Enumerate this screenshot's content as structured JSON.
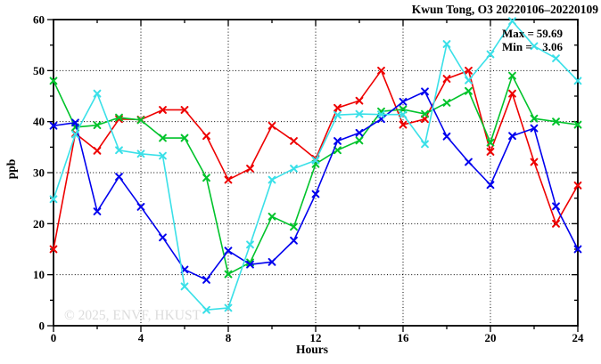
{
  "title": "Kwun Tong, O3 20220106–20220109",
  "annotation": {
    "max_label": "Max =",
    "max_value": "59.69",
    "min_label": "Min =",
    "min_value": "3.06"
  },
  "watermark": "© 2025, ENVF, HKUST",
  "chart_data": {
    "type": "line",
    "title": "Kwun Tong, O3 20220106–20220109",
    "xlabel": "Hours",
    "ylabel": "ppb",
    "xlim": [
      0,
      24
    ],
    "ylim": [
      0,
      60
    ],
    "x_major_ticks": [
      0,
      4,
      8,
      12,
      16,
      20,
      24
    ],
    "x_minor_ticks": [
      2,
      6,
      10,
      14,
      18,
      22
    ],
    "y_major_ticks": [
      0,
      10,
      20,
      30,
      40,
      50,
      60
    ],
    "y_minor_ticks": [
      5,
      15,
      25,
      35,
      45,
      55
    ],
    "grid": {
      "style": "dotted",
      "x_lines": [
        4,
        8,
        12,
        16,
        20
      ],
      "y_lines": [
        10,
        20,
        30,
        40,
        50
      ]
    },
    "legend_position": "none",
    "marker": "x",
    "x": [
      0,
      1,
      2,
      3,
      4,
      5,
      6,
      7,
      8,
      9,
      10,
      11,
      12,
      13,
      14,
      15,
      16,
      17,
      18,
      19,
      20,
      21,
      22,
      23,
      24
    ],
    "series": [
      {
        "name": "series-red",
        "color": "#ee0000",
        "values": [
          15.0,
          37.7,
          34.3,
          40.5,
          40.4,
          42.3,
          42.3,
          37.2,
          28.6,
          30.8,
          39.2,
          36.2,
          32.7,
          42.7,
          44.1,
          50.0,
          39.4,
          40.5,
          48.4,
          50.0,
          34.1,
          45.5,
          32.1,
          20.0,
          27.5
        ]
      },
      {
        "name": "series-green",
        "color": "#00c32b",
        "values": [
          48.0,
          38.9,
          39.3,
          40.8,
          40.3,
          36.8,
          36.8,
          29.0,
          10.1,
          12.4,
          21.4,
          19.4,
          31.7,
          34.4,
          36.3,
          42.0,
          42.4,
          41.5,
          43.7,
          46.0,
          35.9,
          49.0,
          40.6,
          40.0,
          39.4
        ]
      },
      {
        "name": "series-blue",
        "color": "#0000ee",
        "values": [
          39.2,
          39.8,
          22.4,
          29.2,
          23.3,
          17.3,
          11.0,
          9.0,
          14.7,
          12.0,
          12.5,
          16.7,
          25.8,
          36.2,
          37.8,
          40.5,
          43.9,
          45.9,
          37.1,
          32.1,
          27.6,
          37.2,
          38.7,
          23.4,
          15.0
        ]
      },
      {
        "name": "series-cyan",
        "color": "#3ae0e8",
        "values": [
          24.8,
          37.5,
          45.5,
          34.4,
          33.7,
          33.3,
          7.7,
          3.1,
          3.5,
          15.9,
          28.6,
          30.8,
          32.4,
          41.3,
          41.5,
          41.4,
          41.4,
          35.6,
          55.2,
          48.1,
          53.2,
          59.7,
          54.8,
          52.4,
          48.0
        ]
      }
    ],
    "stats": {
      "max": 59.69,
      "min": 3.06
    }
  }
}
